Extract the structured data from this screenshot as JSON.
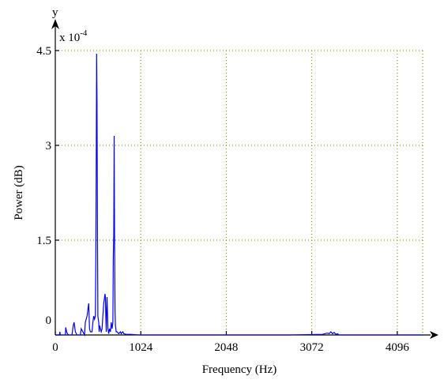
{
  "chart_data": {
    "type": "line",
    "xlabel": "Frequency (Hz)",
    "ylabel": "Power (dB)",
    "x_axis_letter": "",
    "y_axis_letter": "y",
    "y_multiplier": "x 10",
    "y_multiplier_exp": "-4",
    "xlim": [
      0,
      4400
    ],
    "ylim": [
      0,
      4.5
    ],
    "x_ticks": [
      0,
      1024,
      2048,
      3072,
      4096
    ],
    "y_ticks": [
      0,
      1.5,
      3,
      4.5
    ],
    "x_tick_labels": [
      "0",
      "1024",
      "2048",
      "3072",
      "4096"
    ],
    "y_tick_labels": [
      "0",
      "1.5",
      "3",
      "4.5"
    ],
    "grid": true,
    "series": [
      {
        "color": "#0000ff",
        "x": [
          0,
          50,
          55,
          60,
          70,
          120,
          125,
          135,
          145,
          160,
          170,
          200,
          215,
          225,
          240,
          260,
          300,
          310,
          330,
          350,
          360,
          380,
          400,
          405,
          410,
          420,
          440,
          450,
          460,
          470,
          480,
          485,
          490,
          495,
          500,
          505,
          510,
          515,
          520,
          525,
          530,
          540,
          550,
          560,
          570,
          580,
          590,
          595,
          600,
          605,
          610,
          615,
          620,
          630,
          640,
          650,
          660,
          670,
          680,
          690,
          695,
          700,
          705,
          710,
          715,
          720,
          730,
          740,
          760,
          780,
          790,
          800,
          810,
          820,
          850,
          900,
          1000,
          1200,
          1600,
          2200,
          2800,
          3200,
          3260,
          3280,
          3300,
          3320,
          3340,
          3360,
          3380,
          3400,
          3500,
          3800,
          4096,
          4400
        ],
        "y": [
          0,
          0,
          0.05,
          0,
          0,
          0,
          0.12,
          0.05,
          0.02,
          0,
          0,
          0,
          0.15,
          0.2,
          0.05,
          0,
          0,
          0.1,
          0.05,
          0,
          0.2,
          0.3,
          0.5,
          0.3,
          0.1,
          0.05,
          0.05,
          0.2,
          0.3,
          0.25,
          0.3,
          1.2,
          2.6,
          4.45,
          3.7,
          1.6,
          0.3,
          0.25,
          0.2,
          0.05,
          0.15,
          0.1,
          0.05,
          0.1,
          0.3,
          0.5,
          0.6,
          0.65,
          0.6,
          0.3,
          0.05,
          0.4,
          0.6,
          0.1,
          0.02,
          0.1,
          0.05,
          0.2,
          0.1,
          0.2,
          1.2,
          1.6,
          3.15,
          1.6,
          0.4,
          0.15,
          0.05,
          0.05,
          0.02,
          0.05,
          0.02,
          0.04,
          0.05,
          0.02,
          0.01,
          0.01,
          0,
          0,
          0,
          0,
          0,
          0.01,
          0.03,
          0.02,
          0.05,
          0.02,
          0.04,
          0.01,
          0.02,
          0,
          0,
          0,
          0,
          0
        ]
      }
    ]
  }
}
